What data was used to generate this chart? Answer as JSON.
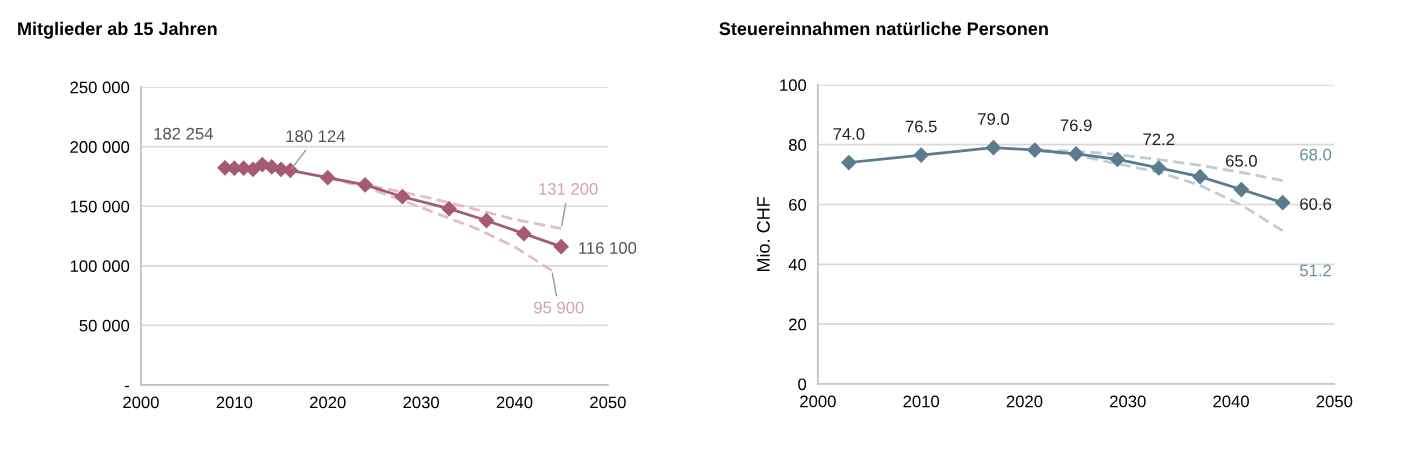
{
  "chart_data": [
    {
      "type": "line",
      "title": "Mitglieder ab 15 Jahren",
      "xlim": [
        2000,
        2050
      ],
      "xticks": [
        2000,
        2010,
        2020,
        2030,
        2040,
        2050
      ],
      "ylim": [
        0,
        250000
      ],
      "yticks": [
        {
          "value": 0,
          "label": "-"
        },
        {
          "value": 50000,
          "label": "50 000"
        },
        {
          "value": 100000,
          "label": "100 000"
        },
        {
          "value": 150000,
          "label": "150 000"
        },
        {
          "value": 200000,
          "label": "200 000"
        },
        {
          "value": 250000,
          "label": "250 000"
        }
      ],
      "grid": "y",
      "legend": false,
      "series": [
        {
          "color": "#e3bccb",
          "line_style": "dashed",
          "marker": "none",
          "x": [
            2020,
            2028,
            2032,
            2036,
            2040,
            2045
          ],
          "values": [
            174000,
            162000,
            155000,
            147000,
            139000,
            131200
          ],
          "value_labels": [
            null,
            null,
            null,
            null,
            null,
            "131 200"
          ]
        },
        {
          "color": "#e3bccb",
          "line_style": "dashed",
          "marker": "none",
          "x": [
            2020,
            2024,
            2028,
            2032,
            2036,
            2040,
            2044
          ],
          "values": [
            174000,
            166000,
            155000,
            143000,
            131000,
            116000,
            95900
          ],
          "value_labels": [
            null,
            null,
            null,
            null,
            null,
            null,
            "95 900"
          ]
        },
        {
          "color": "#a65a73",
          "line_style": "solid",
          "marker": "diamond",
          "x": [
            2009,
            2010,
            2011,
            2012,
            2013,
            2014,
            2015,
            2016,
            2020,
            2024,
            2028,
            2033,
            2037,
            2041,
            2045
          ],
          "values": [
            182254,
            182000,
            182000,
            181000,
            185000,
            183000,
            181000,
            180124,
            174000,
            168000,
            158000,
            148000,
            138000,
            127000,
            116100
          ],
          "value_labels": [
            "182 254",
            null,
            null,
            null,
            null,
            null,
            null,
            "180 124",
            null,
            null,
            null,
            null,
            null,
            null,
            "116 100"
          ]
        }
      ]
    },
    {
      "type": "line",
      "title": "Steuereinnahmen natürliche Personen",
      "ylabel": "Mio. CHF",
      "xlim": [
        2000,
        2050
      ],
      "xticks": [
        2000,
        2010,
        2020,
        2030,
        2040,
        2050
      ],
      "ylim": [
        0,
        100
      ],
      "yticks": [
        0,
        20,
        40,
        60,
        80,
        100
      ],
      "grid": "y",
      "legend": false,
      "series": [
        {
          "color": "#bccdd6",
          "line_style": "dashed",
          "marker": "none",
          "x": [
            2021,
            2025,
            2029,
            2033,
            2037,
            2041,
            2045
          ],
          "values": [
            78.2,
            77.8,
            76.7,
            75.0,
            73.1,
            70.7,
            68.0
          ],
          "value_labels": [
            null,
            null,
            null,
            null,
            null,
            null,
            "68.0"
          ]
        },
        {
          "color": "#bccdd6",
          "line_style": "dashed",
          "marker": "none",
          "x": [
            2021,
            2025,
            2029,
            2033,
            2037,
            2041,
            2045
          ],
          "values": [
            78.2,
            76.5,
            73.6,
            70.8,
            66.4,
            59.8,
            51.2
          ],
          "value_labels": [
            null,
            null,
            null,
            null,
            null,
            null,
            "51.2"
          ]
        },
        {
          "color": "#5b7b8e",
          "line_style": "solid",
          "marker": "diamond",
          "x": [
            2003,
            2010,
            2017,
            2021,
            2025,
            2029,
            2033,
            2037,
            2041,
            2045
          ],
          "values": [
            74.0,
            76.5,
            79.0,
            78.2,
            76.9,
            75.1,
            72.2,
            69.3,
            65.0,
            60.6
          ],
          "value_labels": [
            "74.0",
            "76.5",
            "79.0",
            null,
            "76.9",
            null,
            "72.2",
            null,
            "65.0",
            "60.6"
          ]
        }
      ]
    }
  ]
}
